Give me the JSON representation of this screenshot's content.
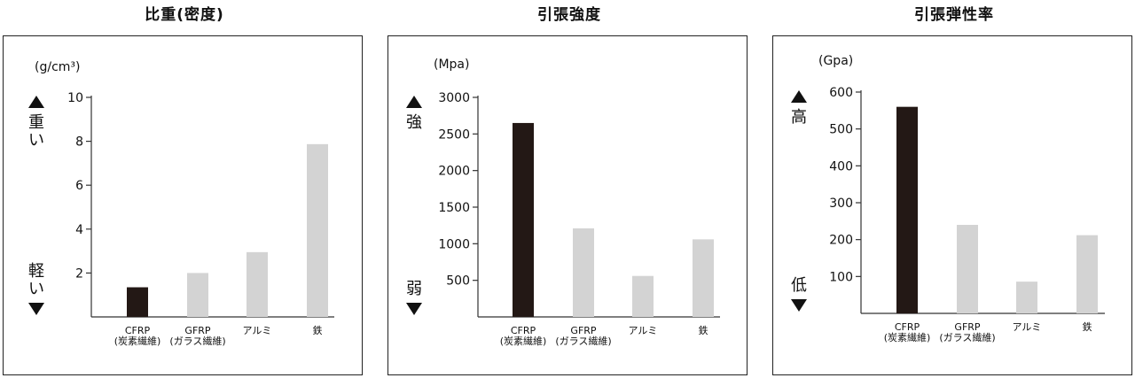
{
  "chart_data": [
    {
      "type": "bar",
      "title": "比重(密度)",
      "unit": "(g/cm³)",
      "categories": [
        [
          "CFRP",
          "(炭素繊維)"
        ],
        [
          "GFRP",
          "(ガラス繊維)"
        ],
        [
          "アルミ"
        ],
        [
          "鉄"
        ]
      ],
      "values": [
        1.35,
        2.0,
        2.95,
        7.87
      ],
      "ylim": [
        0,
        10
      ],
      "ticks": [
        "2",
        "4",
        "6",
        "8",
        "10"
      ],
      "high_label": "重い",
      "low_label": "軽い",
      "colors": [
        "#231815",
        "#d3d3d3",
        "#d3d3d3",
        "#d3d3d3"
      ],
      "grid": false
    },
    {
      "type": "bar",
      "title": "引張強度",
      "unit": "(Mpa)",
      "categories": [
        [
          "CFRP",
          "(炭素繊維)"
        ],
        [
          "GFRP",
          "(ガラス繊維)"
        ],
        [
          "アルミ"
        ],
        [
          "鉄"
        ]
      ],
      "values": [
        2650,
        1210,
        560,
        1060
      ],
      "ylim": [
        0,
        3000
      ],
      "ticks": [
        "500",
        "1000",
        "1500",
        "2000",
        "2500",
        "3000"
      ],
      "high_label": "強",
      "low_label": "弱",
      "colors": [
        "#231815",
        "#d3d3d3",
        "#d3d3d3",
        "#d3d3d3"
      ],
      "grid": false
    },
    {
      "type": "bar",
      "title": "引張弾性率",
      "unit": "(Gpa)",
      "categories": [
        [
          "CFRP",
          "(炭素繊維)"
        ],
        [
          "GFRP",
          "(ガラス繊維)"
        ],
        [
          "アルミ"
        ],
        [
          "鉄"
        ]
      ],
      "values": [
        560,
        240,
        86,
        212
      ],
      "ylim": [
        0,
        600
      ],
      "ticks": [
        "100",
        "200",
        "300",
        "400",
        "500",
        "600"
      ],
      "high_label": "高",
      "low_label": "低",
      "colors": [
        "#231815",
        "#d3d3d3",
        "#d3d3d3",
        "#d3d3d3"
      ],
      "grid": false
    }
  ]
}
